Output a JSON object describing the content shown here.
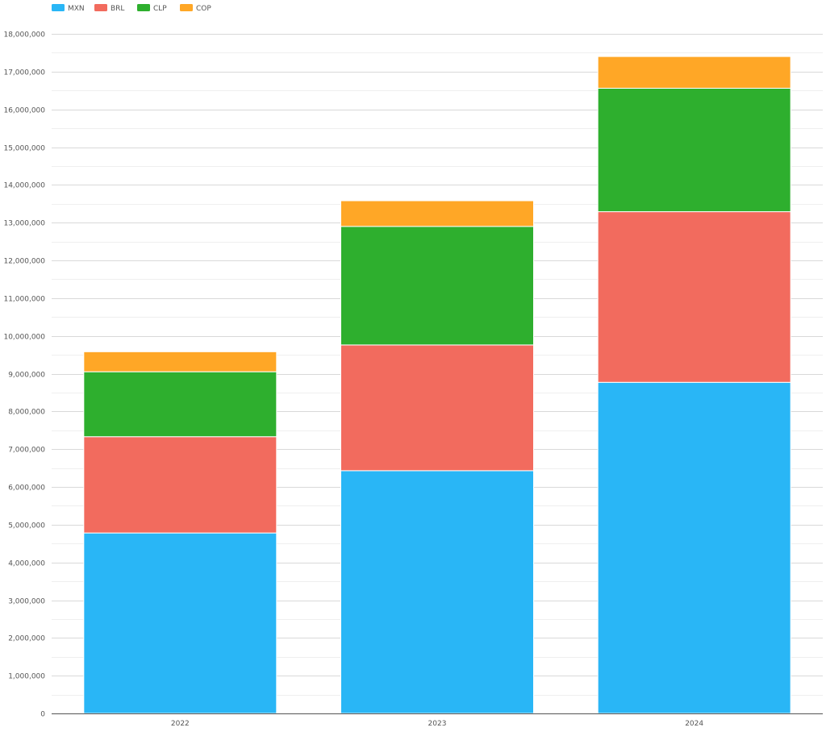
{
  "chart_data": {
    "type": "bar",
    "stacked": true,
    "title": "",
    "xlabel": "",
    "ylabel": "",
    "categories": [
      "2022",
      "2023",
      "2024"
    ],
    "series": [
      {
        "name": "MXN",
        "color": "#29b6f6",
        "values": [
          4780000,
          6430000,
          8770000
        ]
      },
      {
        "name": "BRL",
        "color": "#f26b5e",
        "values": [
          2550000,
          3330000,
          4520000
        ]
      },
      {
        "name": "CLP",
        "color": "#2eaf2e",
        "values": [
          1720000,
          3140000,
          3270000
        ]
      },
      {
        "name": "COP",
        "color": "#ffa726",
        "values": [
          530000,
          680000,
          840000
        ]
      }
    ],
    "ylim": [
      0,
      18000000
    ],
    "y_ticks": [
      0,
      1000000,
      2000000,
      3000000,
      4000000,
      5000000,
      6000000,
      7000000,
      8000000,
      9000000,
      10000000,
      11000000,
      12000000,
      13000000,
      14000000,
      15000000,
      16000000,
      17000000,
      18000000
    ],
    "y_tick_labels": [
      "0",
      "1,000,000",
      "2,000,000",
      "3,000,000",
      "4,000,000",
      "5,000,000",
      "6,000,000",
      "7,000,000",
      "8,000,000",
      "9,000,000",
      "10,000,000",
      "11,000,000",
      "12,000,000",
      "13,000,000",
      "14,000,000",
      "15,000,000",
      "16,000,000",
      "17,000,000",
      "18,000,000"
    ],
    "grid": true,
    "minor_grid": true,
    "legend": "top-left",
    "colors": {
      "grid_major": "#d9d9d9",
      "grid_minor": "#efefef",
      "axis": "#555555",
      "separator": "#ffffff"
    }
  }
}
